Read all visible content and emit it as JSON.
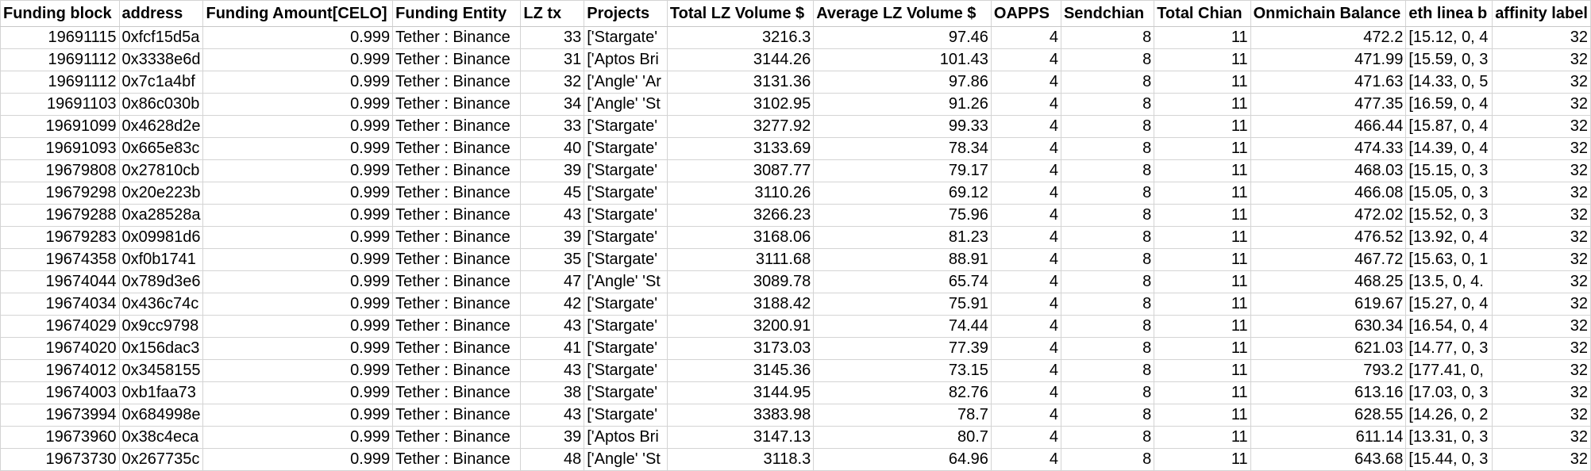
{
  "headers": [
    "Funding block",
    "address",
    "Funding Amount[CELO]",
    "Funding Entity",
    "LZ tx",
    "Projects",
    "Total LZ Volume $",
    "Average LZ Volume $",
    "OAPPS",
    "Sendchian",
    "Total Chian",
    "Onmichain Balance",
    "eth linea b",
    "affinity label"
  ],
  "rows": [
    [
      "19691115",
      "0xfcf15d5a",
      "0.999",
      "Tether : Binance",
      "33",
      "['Stargate'",
      "3216.3",
      "97.46",
      "4",
      "8",
      "11",
      "472.2",
      "[15.12, 0, 4",
      "32"
    ],
    [
      "19691112",
      "0x3338e6d",
      "0.999",
      "Tether : Binance",
      "31",
      "['Aptos Bri",
      "3144.26",
      "101.43",
      "4",
      "8",
      "11",
      "471.99",
      "[15.59, 0, 3",
      "32"
    ],
    [
      "19691112",
      "0x7c1a4bf",
      "0.999",
      "Tether : Binance",
      "32",
      "['Angle' 'Ar",
      "3131.36",
      "97.86",
      "4",
      "8",
      "11",
      "471.63",
      "[14.33, 0, 5",
      "32"
    ],
    [
      "19691103",
      "0x86c030b",
      "0.999",
      "Tether : Binance",
      "34",
      "['Angle' 'St",
      "3102.95",
      "91.26",
      "4",
      "8",
      "11",
      "477.35",
      "[16.59, 0, 4",
      "32"
    ],
    [
      "19691099",
      "0x4628d2e",
      "0.999",
      "Tether : Binance",
      "33",
      "['Stargate'",
      "3277.92",
      "99.33",
      "4",
      "8",
      "11",
      "466.44",
      "[15.87, 0, 4",
      "32"
    ],
    [
      "19691093",
      "0x665e83c",
      "0.999",
      "Tether : Binance",
      "40",
      "['Stargate'",
      "3133.69",
      "78.34",
      "4",
      "8",
      "11",
      "474.33",
      "[14.39, 0, 4",
      "32"
    ],
    [
      "19679808",
      "0x27810cb",
      "0.999",
      "Tether : Binance",
      "39",
      "['Stargate'",
      "3087.77",
      "79.17",
      "4",
      "8",
      "11",
      "468.03",
      "[15.15, 0, 3",
      "32"
    ],
    [
      "19679298",
      "0x20e223b",
      "0.999",
      "Tether : Binance",
      "45",
      "['Stargate'",
      "3110.26",
      "69.12",
      "4",
      "8",
      "11",
      "466.08",
      "[15.05, 0, 3",
      "32"
    ],
    [
      "19679288",
      "0xa28528a",
      "0.999",
      "Tether : Binance",
      "43",
      "['Stargate'",
      "3266.23",
      "75.96",
      "4",
      "8",
      "11",
      "472.02",
      "[15.52, 0, 3",
      "32"
    ],
    [
      "19679283",
      "0x09981d6",
      "0.999",
      "Tether : Binance",
      "39",
      "['Stargate'",
      "3168.06",
      "81.23",
      "4",
      "8",
      "11",
      "476.52",
      "[13.92, 0, 4",
      "32"
    ],
    [
      "19674358",
      "0xf0b1741",
      "0.999",
      "Tether : Binance",
      "35",
      "['Stargate'",
      "3111.68",
      "88.91",
      "4",
      "8",
      "11",
      "467.72",
      "[15.63, 0, 1",
      "32"
    ],
    [
      "19674044",
      "0x789d3e6",
      "0.999",
      "Tether : Binance",
      "47",
      "['Angle' 'St",
      "3089.78",
      "65.74",
      "4",
      "8",
      "11",
      "468.25",
      "[13.5, 0, 4.",
      "32"
    ],
    [
      "19674034",
      "0x436c74c",
      "0.999",
      "Tether : Binance",
      "42",
      "['Stargate'",
      "3188.42",
      "75.91",
      "4",
      "8",
      "11",
      "619.67",
      "[15.27, 0, 4",
      "32"
    ],
    [
      "19674029",
      "0x9cc9798",
      "0.999",
      "Tether : Binance",
      "43",
      "['Stargate'",
      "3200.91",
      "74.44",
      "4",
      "8",
      "11",
      "630.34",
      "[16.54, 0, 4",
      "32"
    ],
    [
      "19674020",
      "0x156dac3",
      "0.999",
      "Tether : Binance",
      "41",
      "['Stargate'",
      "3173.03",
      "77.39",
      "4",
      "8",
      "11",
      "621.03",
      "[14.77, 0, 3",
      "32"
    ],
    [
      "19674012",
      "0x3458155",
      "0.999",
      "Tether : Binance",
      "43",
      "['Stargate'",
      "3145.36",
      "73.15",
      "4",
      "8",
      "11",
      "793.2",
      "[177.41, 0,",
      "32"
    ],
    [
      "19674003",
      "0xb1faa73",
      "0.999",
      "Tether : Binance",
      "38",
      "['Stargate'",
      "3144.95",
      "82.76",
      "4",
      "8",
      "11",
      "613.16",
      "[17.03, 0, 3",
      "32"
    ],
    [
      "19673994",
      "0x684998e",
      "0.999",
      "Tether : Binance",
      "43",
      "['Stargate'",
      "3383.98",
      "78.7",
      "4",
      "8",
      "11",
      "628.55",
      "[14.26, 0, 2",
      "32"
    ],
    [
      "19673960",
      "0x38c4eca",
      "0.999",
      "Tether : Binance",
      "39",
      "['Aptos Bri",
      "3147.13",
      "80.7",
      "4",
      "8",
      "11",
      "611.14",
      "[13.31, 0, 3",
      "32"
    ],
    [
      "19673730",
      "0x267735c",
      "0.999",
      "Tether : Binance",
      "48",
      "['Angle' 'St",
      "3118.3",
      "64.96",
      "4",
      "8",
      "11",
      "643.68",
      "[15.44, 0, 3",
      "32"
    ]
  ]
}
